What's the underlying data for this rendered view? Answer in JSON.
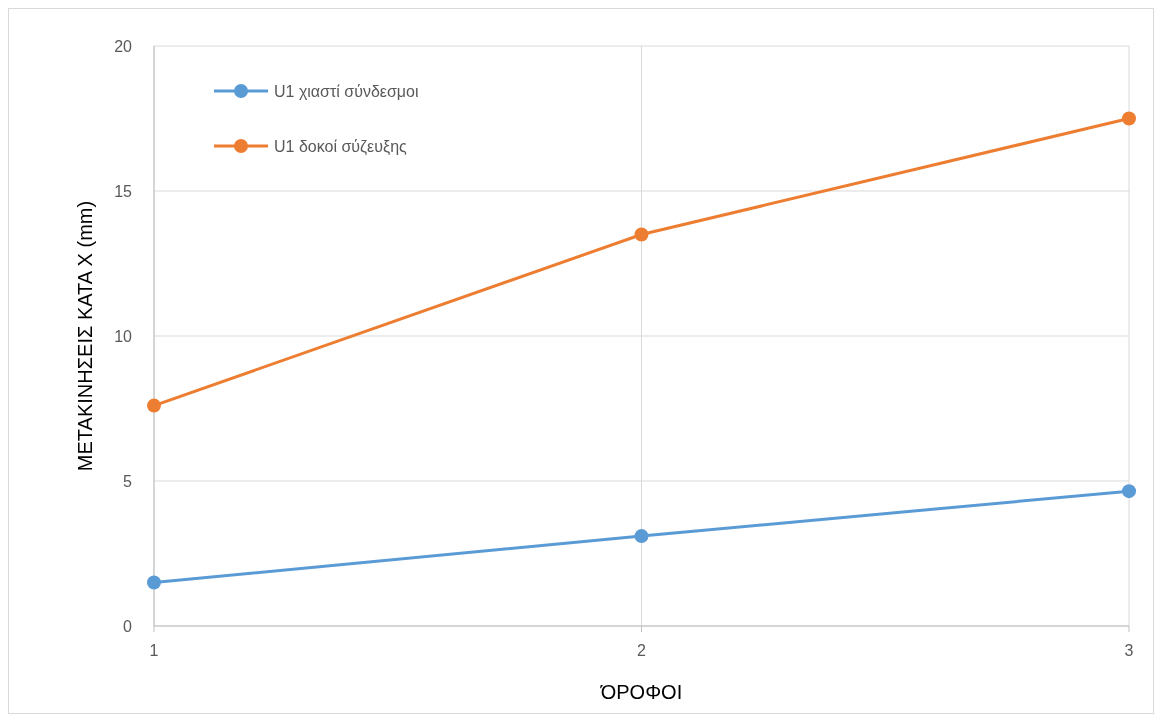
{
  "chart_data": {
    "type": "line",
    "xlabel": "ΌΡΟΦΟΙ",
    "ylabel": "ΜΕΤΑΚΙΝΗΣΕΙΣ ΚΑΤΑ Χ (mm)",
    "x": [
      1,
      2,
      3
    ],
    "series": [
      {
        "name": "U1 χιαστί σύνδεσμοι",
        "color": "#5b9bd5",
        "values": [
          1.5,
          3.1,
          4.65
        ]
      },
      {
        "name": "U1 δοκοί σύζευξης",
        "color": "#ed7d31",
        "values": [
          7.6,
          13.5,
          17.5
        ]
      }
    ],
    "xlim": [
      1,
      3
    ],
    "xticks": [
      1,
      2,
      3
    ],
    "ylim": [
      0,
      20
    ],
    "yticks": [
      0,
      5,
      10,
      15,
      20
    ],
    "grid": true,
    "legend": "top left",
    "marker": "circle",
    "line_style": "solid"
  }
}
